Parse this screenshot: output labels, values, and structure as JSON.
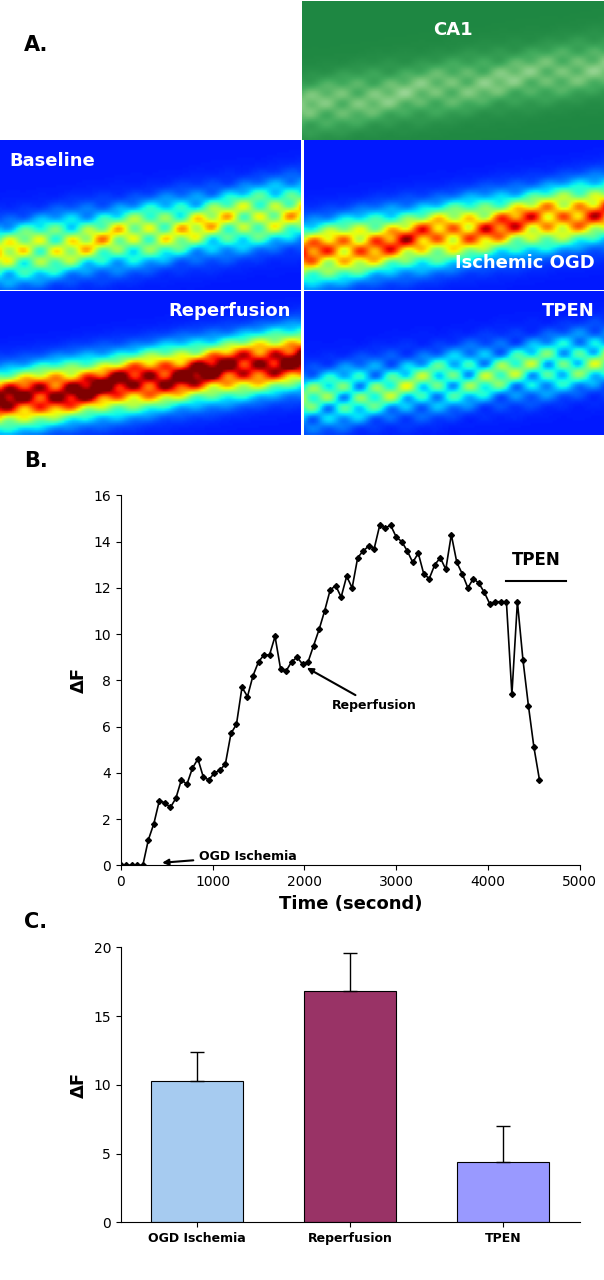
{
  "chart_data": [
    {
      "type": "image",
      "title": "A.",
      "images": [
        "CA1",
        "Baseline",
        "Ischemic OGD",
        "Reperfusion",
        "TPEN"
      ]
    },
    {
      "type": "line",
      "title": "B.",
      "x_label": "Time (second)",
      "y_label": "ΔF",
      "x": [
        0,
        60,
        120,
        180,
        240,
        300,
        360,
        420,
        480,
        540,
        600,
        660,
        720,
        780,
        840,
        900,
        960,
        1020,
        1080,
        1140,
        1200,
        1260,
        1320,
        1380,
        1440,
        1500,
        1560,
        1620,
        1680,
        1740,
        1800,
        1860,
        1920,
        1980,
        2040,
        2100,
        2160,
        2220,
        2280,
        2340,
        2400,
        2460,
        2520,
        2580,
        2640,
        2700,
        2760,
        2820,
        2880,
        2940,
        3000,
        3060,
        3120,
        3180,
        3240,
        3300,
        3360,
        3420,
        3480,
        3540,
        3600,
        3660,
        3720,
        3780,
        3840,
        3900,
        3960,
        4020,
        4080,
        4140,
        4200,
        4260,
        4320,
        4380,
        4440,
        4500,
        4560
      ],
      "values": [
        0,
        0,
        0,
        0,
        0,
        1.1,
        1.8,
        2.8,
        2.7,
        2.5,
        2.9,
        3.7,
        3.5,
        4.2,
        4.6,
        3.8,
        3.7,
        4.0,
        4.1,
        4.4,
        5.7,
        6.1,
        7.7,
        7.3,
        8.2,
        8.8,
        9.1,
        9.1,
        9.9,
        8.5,
        8.4,
        8.8,
        9.0,
        8.7,
        8.8,
        9.5,
        10.2,
        11.0,
        11.9,
        12.1,
        11.6,
        12.5,
        12.0,
        13.3,
        13.6,
        13.8,
        13.7,
        14.7,
        14.6,
        14.7,
        14.2,
        14.0,
        13.6,
        13.1,
        13.5,
        12.6,
        12.4,
        13.0,
        13.3,
        12.8,
        14.3,
        13.1,
        12.6,
        12.0,
        12.4,
        12.2,
        11.8,
        11.3,
        11.4,
        11.4,
        11.4,
        7.4,
        11.4,
        8.9,
        6.9,
        5.1,
        3.7
      ],
      "color": "#000000",
      "marker": "D",
      "xlim": [
        0,
        5000
      ],
      "xticks": [
        0,
        1000,
        2000,
        3000,
        4000,
        5000
      ],
      "ylim": [
        0,
        16
      ],
      "yticks": [
        0,
        2,
        4,
        6,
        8,
        10,
        12,
        14,
        16
      ],
      "annotations": [
        {
          "text": "OGD Ischemia",
          "xy": [
            420,
            0.1
          ],
          "xytext": [
            850,
            0.4
          ]
        },
        {
          "text": "Reperfusion",
          "xy": [
            2000,
            8.6
          ],
          "xytext": [
            2300,
            6.9
          ]
        }
      ],
      "bar_annotation": {
        "text": "TPEN",
        "x": [
          4200,
          4850
        ],
        "y": 12.3
      }
    },
    {
      "type": "bar",
      "title": "C.",
      "y_label": "ΔF",
      "categories": [
        "OGD Ischemia",
        "Reperfusion",
        "TPEN"
      ],
      "values": [
        10.3,
        16.8,
        4.4
      ],
      "errors": [
        2.1,
        2.8,
        2.6
      ],
      "colors": [
        "#a6cbf0",
        "#993366",
        "#9999ff"
      ],
      "ylim": [
        0,
        20
      ],
      "yticks": [
        0,
        5,
        10,
        15,
        20
      ]
    }
  ]
}
